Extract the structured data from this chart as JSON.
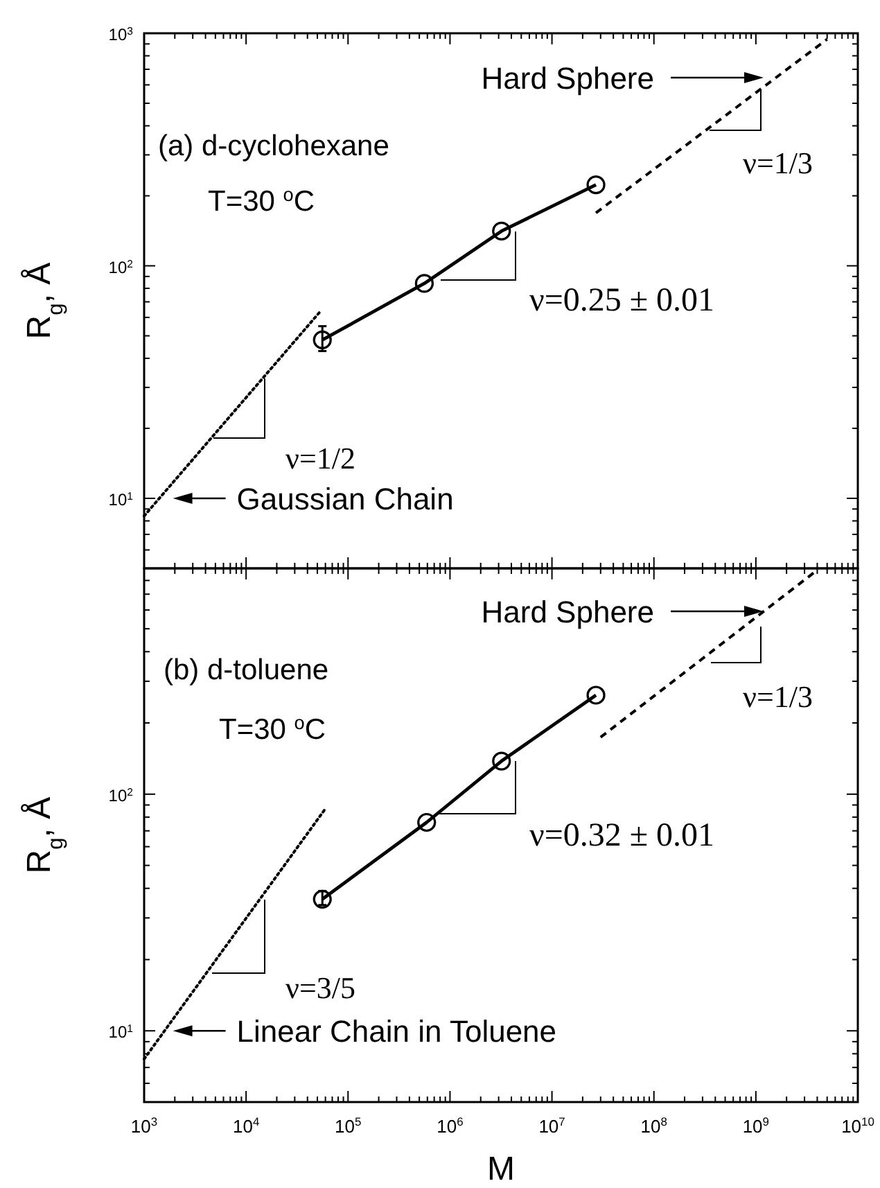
{
  "chart_data": [
    {
      "type": "line",
      "ylabel": "R$_{g}$, Å",
      "log": "xy",
      "tick_labels": "y",
      "xlim": [
        1000,
        10000000000
      ],
      "xticks": [
        {
          "value": 1000,
          "label": null
        },
        {
          "value": 2000,
          "label": null
        },
        {
          "value": 3000,
          "label": null
        },
        {
          "value": 4000,
          "label": null
        },
        {
          "value": 5000,
          "label": null
        },
        {
          "value": 6000,
          "label": null
        },
        {
          "value": 7000,
          "label": null
        },
        {
          "value": 8000,
          "label": null
        },
        {
          "value": 9000,
          "label": null
        },
        {
          "value": 10000,
          "label": null
        },
        {
          "value": 20000,
          "label": null
        },
        {
          "value": 30000,
          "label": null
        },
        {
          "value": 40000,
          "label": null
        },
        {
          "value": 50000,
          "label": null
        },
        {
          "value": 60000,
          "label": null
        },
        {
          "value": 70000,
          "label": null
        },
        {
          "value": 80000,
          "label": null
        },
        {
          "value": 90000,
          "label": null
        },
        {
          "value": 100000,
          "label": null
        },
        {
          "value": 200000,
          "label": null
        },
        {
          "value": 300000,
          "label": null
        },
        {
          "value": 400000,
          "label": null
        },
        {
          "value": 500000,
          "label": null
        },
        {
          "value": 600000,
          "label": null
        },
        {
          "value": 700000,
          "label": null
        },
        {
          "value": 800000,
          "label": null
        },
        {
          "value": 900000,
          "label": null
        },
        {
          "value": 1000000,
          "label": null
        },
        {
          "value": 2000000,
          "label": null
        },
        {
          "value": 3000000,
          "label": null
        },
        {
          "value": 4000000,
          "label": null
        },
        {
          "value": 5000000,
          "label": null
        },
        {
          "value": 6000000,
          "label": null
        },
        {
          "value": 7000000,
          "label": null
        },
        {
          "value": 8000000,
          "label": null
        },
        {
          "value": 9000000,
          "label": null
        },
        {
          "value": 10000000,
          "label": null
        },
        {
          "value": 20000000,
          "label": null
        },
        {
          "value": 30000000,
          "label": null
        },
        {
          "value": 40000000,
          "label": null
        },
        {
          "value": 50000000,
          "label": null
        },
        {
          "value": 60000000,
          "label": null
        },
        {
          "value": 70000000,
          "label": null
        },
        {
          "value": 80000000,
          "label": null
        },
        {
          "value": 90000000,
          "label": null
        },
        {
          "value": 100000000,
          "label": null
        },
        {
          "value": 200000000,
          "label": null
        },
        {
          "value": 300000000,
          "label": null
        },
        {
          "value": 400000000,
          "label": null
        },
        {
          "value": 500000000,
          "label": null
        },
        {
          "value": 600000000,
          "label": null
        },
        {
          "value": 700000000,
          "label": null
        },
        {
          "value": 800000000,
          "label": null
        },
        {
          "value": 900000000,
          "label": null
        },
        {
          "value": 1000000000,
          "label": null
        },
        {
          "value": 2000000000,
          "label": null
        },
        {
          "value": 3000000000,
          "label": null
        },
        {
          "value": 4000000000,
          "label": null
        },
        {
          "value": 5000000000,
          "label": null
        },
        {
          "value": 6000000000,
          "label": null
        },
        {
          "value": 7000000000,
          "label": null
        },
        {
          "value": 8000000000,
          "label": null
        },
        {
          "value": 9000000000,
          "label": null
        },
        {
          "value": 10000000000,
          "label": null
        }
      ],
      "ylim": [
        5,
        1000
      ],
      "yticks": [
        {
          "value": 5,
          "label": null
        },
        {
          "value": 6,
          "label": null
        },
        {
          "value": 7,
          "label": null
        },
        {
          "value": 8,
          "label": null
        },
        {
          "value": 9,
          "label": null
        },
        {
          "value": 10,
          "label": "10$^{1}$"
        },
        {
          "value": 20,
          "label": null
        },
        {
          "value": 30,
          "label": null
        },
        {
          "value": 40,
          "label": null
        },
        {
          "value": 50,
          "label": null
        },
        {
          "value": 60,
          "label": null
        },
        {
          "value": 70,
          "label": null
        },
        {
          "value": 80,
          "label": null
        },
        {
          "value": 90,
          "label": null
        },
        {
          "value": 100,
          "label": "10$^{2}$"
        },
        {
          "value": 200,
          "label": null
        },
        {
          "value": 300,
          "label": null
        },
        {
          "value": 400,
          "label": null
        },
        {
          "value": 500,
          "label": null
        },
        {
          "value": 600,
          "label": null
        },
        {
          "value": 700,
          "label": null
        },
        {
          "value": 800,
          "label": null
        },
        {
          "value": 900,
          "label": null
        },
        {
          "value": 1000,
          "label": "10$^{3}$"
        }
      ],
      "series": [
        {
          "color": "#000000",
          "marker": "circle",
          "line_style": "solid",
          "x": [
            56000,
            560000,
            3200000,
            27000000
          ],
          "values": [
            48,
            84,
            141,
            223
          ],
          "errors": [
            [
              43,
              55
            ],
            null,
            null,
            null
          ]
        },
        {
          "color": "#000000",
          "marker": "none",
          "line_style": "dotted",
          "x": [
            1000,
            54000
          ],
          "values": [
            8.4,
            64
          ]
        },
        {
          "color": "#000000",
          "marker": "none",
          "line_style": "dashed",
          "x": [
            27000000,
            5000000000
          ],
          "values": [
            169,
            943
          ]
        }
      ],
      "annotations": [
        "(a) d-cyclohexane",
        "T=30 $^{o}$C",
        "Hard Sphere",
        "ν=1/3",
        "ν=0.25 ± 0.01",
        "ν=1/2",
        {
          "text": "Gaussian Chain",
          "x": 1800,
          "y": 10
        }
      ]
    },
    {
      "type": "line",
      "ylabel": "R$_{g}$, Å",
      "xlabel": "M",
      "log": "xy",
      "xlim": [
        1000,
        10000000000
      ],
      "xticks": [
        {
          "value": 1000,
          "label": "10$^{3}$"
        },
        {
          "value": 2000,
          "label": null
        },
        {
          "value": 3000,
          "label": null
        },
        {
          "value": 4000,
          "label": null
        },
        {
          "value": 5000,
          "label": null
        },
        {
          "value": 6000,
          "label": null
        },
        {
          "value": 7000,
          "label": null
        },
        {
          "value": 8000,
          "label": null
        },
        {
          "value": 9000,
          "label": null
        },
        {
          "value": 10000,
          "label": "10$^{4}$"
        },
        {
          "value": 20000,
          "label": null
        },
        {
          "value": 30000,
          "label": null
        },
        {
          "value": 40000,
          "label": null
        },
        {
          "value": 50000,
          "label": null
        },
        {
          "value": 60000,
          "label": null
        },
        {
          "value": 70000,
          "label": null
        },
        {
          "value": 80000,
          "label": null
        },
        {
          "value": 90000,
          "label": null
        },
        {
          "value": 100000,
          "label": "10$^{5}$"
        },
        {
          "value": 200000,
          "label": null
        },
        {
          "value": 300000,
          "label": null
        },
        {
          "value": 400000,
          "label": null
        },
        {
          "value": 500000,
          "label": null
        },
        {
          "value": 600000,
          "label": null
        },
        {
          "value": 700000,
          "label": null
        },
        {
          "value": 800000,
          "label": null
        },
        {
          "value": 900000,
          "label": null
        },
        {
          "value": 1000000,
          "label": "10$^{6}$"
        },
        {
          "value": 2000000,
          "label": null
        },
        {
          "value": 3000000,
          "label": null
        },
        {
          "value": 4000000,
          "label": null
        },
        {
          "value": 5000000,
          "label": null
        },
        {
          "value": 6000000,
          "label": null
        },
        {
          "value": 7000000,
          "label": null
        },
        {
          "value": 8000000,
          "label": null
        },
        {
          "value": 9000000,
          "label": null
        },
        {
          "value": 10000000,
          "label": "10$^{7}$"
        },
        {
          "value": 20000000,
          "label": null
        },
        {
          "value": 30000000,
          "label": null
        },
        {
          "value": 40000000,
          "label": null
        },
        {
          "value": 50000000,
          "label": null
        },
        {
          "value": 60000000,
          "label": null
        },
        {
          "value": 70000000,
          "label": null
        },
        {
          "value": 80000000,
          "label": null
        },
        {
          "value": 90000000,
          "label": null
        },
        {
          "value": 100000000,
          "label": "10$^{8}$"
        },
        {
          "value": 200000000,
          "label": null
        },
        {
          "value": 300000000,
          "label": null
        },
        {
          "value": 400000000,
          "label": null
        },
        {
          "value": 500000000,
          "label": null
        },
        {
          "value": 600000000,
          "label": null
        },
        {
          "value": 700000000,
          "label": null
        },
        {
          "value": 800000000,
          "label": null
        },
        {
          "value": 900000000,
          "label": null
        },
        {
          "value": 1000000000,
          "label": "10$^{9}$"
        },
        {
          "value": 2000000000,
          "label": null
        },
        {
          "value": 3000000000,
          "label": null
        },
        {
          "value": 4000000000,
          "label": null
        },
        {
          "value": 5000000000,
          "label": null
        },
        {
          "value": 6000000000,
          "label": null
        },
        {
          "value": 7000000000,
          "label": null
        },
        {
          "value": 8000000000,
          "label": null
        },
        {
          "value": 9000000000,
          "label": null
        },
        {
          "value": 10000000000,
          "label": "10$^{10}$"
        }
      ],
      "ylim": [
        5,
        900
      ],
      "yticks": [
        {
          "value": 5,
          "label": null
        },
        {
          "value": 6,
          "label": null
        },
        {
          "value": 7,
          "label": null
        },
        {
          "value": 8,
          "label": null
        },
        {
          "value": 9,
          "label": null
        },
        {
          "value": 10,
          "label": "10$^{1}$"
        },
        {
          "value": 20,
          "label": null
        },
        {
          "value": 30,
          "label": null
        },
        {
          "value": 40,
          "label": null
        },
        {
          "value": 50,
          "label": null
        },
        {
          "value": 60,
          "label": null
        },
        {
          "value": 70,
          "label": null
        },
        {
          "value": 80,
          "label": null
        },
        {
          "value": 90,
          "label": null
        },
        {
          "value": 100,
          "label": "10$^{2}$"
        },
        {
          "value": 200,
          "label": null
        },
        {
          "value": 300,
          "label": null
        },
        {
          "value": 400,
          "label": null
        },
        {
          "value": 500,
          "label": null
        },
        {
          "value": 600,
          "label": null
        },
        {
          "value": 700,
          "label": null
        },
        {
          "value": 800,
          "label": null
        },
        {
          "value": 900,
          "label": null
        }
      ],
      "series": [
        {
          "color": "#000000",
          "marker": "circle",
          "line_style": "solid",
          "x": [
            56000,
            590000,
            3200000,
            27000000
          ],
          "values": [
            36,
            76,
            138,
            262
          ],
          "errors": [
            [
              34,
              39
            ],
            null,
            null,
            null
          ]
        },
        {
          "color": "#000000",
          "marker": "none",
          "line_style": "dotted",
          "x": [
            1000,
            59000
          ],
          "values": [
            7.6,
            86
          ]
        },
        {
          "color": "#000000",
          "marker": "none",
          "line_style": "dashed",
          "x": [
            30000000,
            3800000000
          ],
          "values": [
            174,
            870
          ]
        }
      ],
      "annotations": [
        "(b) d-toluene",
        "T=30 $^{o}$C",
        "Hard Sphere",
        "ν=1/3",
        "ν=0.32 ± 0.01",
        "ν=3/5",
        {
          "text": "Linear Chain in Toluene",
          "x": 1800,
          "y": 10
        }
      ]
    }
  ]
}
